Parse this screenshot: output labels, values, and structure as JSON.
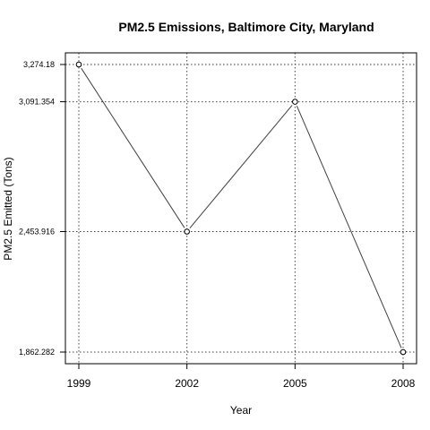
{
  "chart_data": {
    "type": "line",
    "title": "PM2.5 Emissions, Baltimore City, Maryland",
    "xlabel": "Year",
    "ylabel": "PM2.5 Emitted (Tons)",
    "x": [
      1999,
      2002,
      2005,
      2008
    ],
    "xtick_labels": [
      "1999",
      "2002",
      "2005",
      "2008"
    ],
    "series": [
      {
        "values": [
          3274.18,
          2453.916,
          3091.354,
          1862.282
        ]
      }
    ],
    "ytick_values": [
      3274.18,
      3091.354,
      2453.916,
      1862.282
    ],
    "ytick_labels": [
      "3,274.18",
      "3,091.354",
      "2,453.916",
      "1,862.282"
    ],
    "xlim": [
      1999,
      2008
    ],
    "ylim": [
      1862.282,
      3274.18
    ],
    "grid": true,
    "grid_style": "dotted",
    "marker": "open-circle",
    "colors": {
      "line": "#404040",
      "grid": "#404040",
      "frame": "#000000",
      "marker": "#000000"
    }
  }
}
